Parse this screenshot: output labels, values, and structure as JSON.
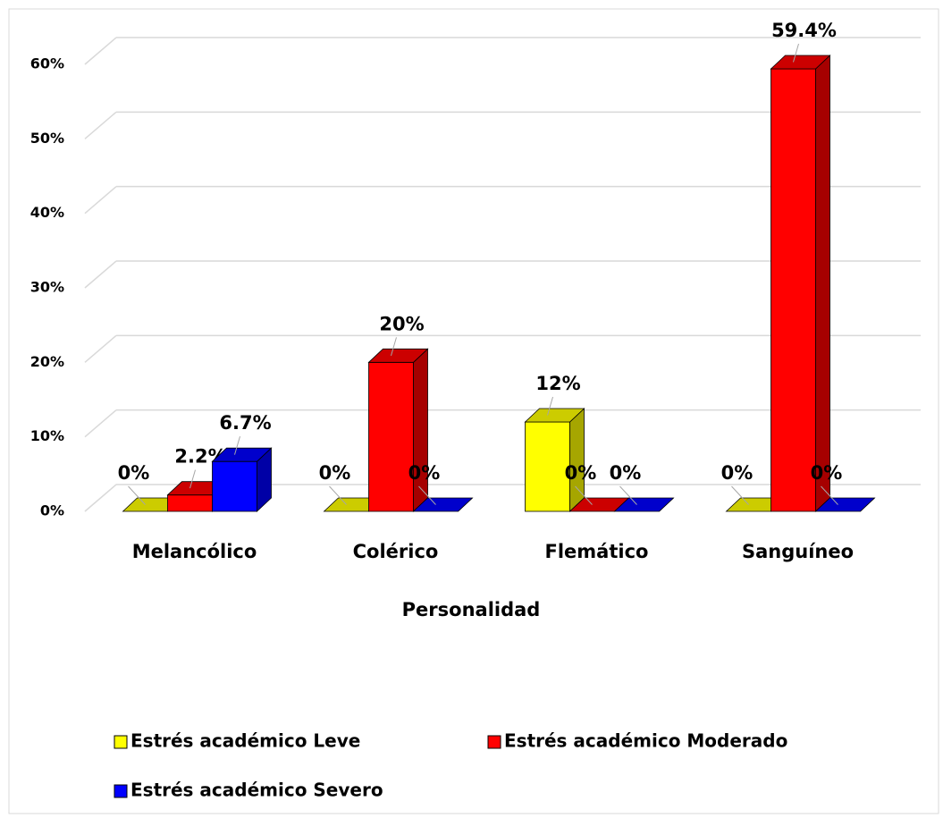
{
  "chart_data": {
    "type": "bar3d",
    "x_label": "Personalidad",
    "categories": [
      "Melancólico",
      "Colérico",
      "Flemático",
      "Sanguíneo"
    ],
    "series": [
      {
        "name": "Estrés académico Leve",
        "color": "#ffff00",
        "values": [
          0,
          0,
          12,
          0
        ],
        "value_labels": [
          "0%",
          "0%",
          "12%",
          "0%"
        ]
      },
      {
        "name": "Estrés académico Moderado",
        "color": "#ff0000",
        "values": [
          2.2,
          20,
          0,
          59.4
        ],
        "value_labels": [
          "2.2%",
          "20%",
          "0%",
          "59.4%"
        ]
      },
      {
        "name": "Estrés académico Severo",
        "color": "#0000ff",
        "values": [
          6.7,
          0,
          0,
          0
        ],
        "value_labels": [
          "6.7%",
          "0%",
          "0%",
          "0%"
        ]
      }
    ],
    "ylim": [
      0,
      60
    ],
    "yticks": [
      {
        "value": 0,
        "label": "0%"
      },
      {
        "value": 10,
        "label": "10%"
      },
      {
        "value": 20,
        "label": "20%"
      },
      {
        "value": 30,
        "label": "30%"
      },
      {
        "value": 40,
        "label": "40%"
      },
      {
        "value": 50,
        "label": "50%"
      },
      {
        "value": 60,
        "label": "60%"
      }
    ],
    "grid": true
  }
}
